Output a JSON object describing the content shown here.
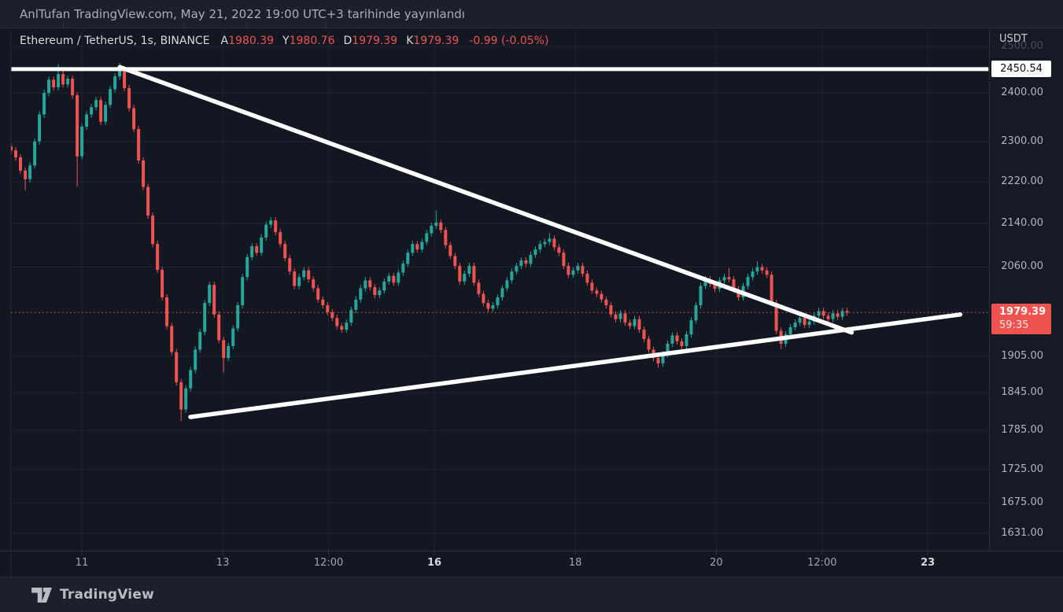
{
  "page": {
    "published_line": "AnlTufan TradingView.com, May 21, 2022 19:00 UTC+3 tarihinde yayınlandı"
  },
  "legend": {
    "symbol_title": "Ethereum / TetherUS, 1s, BINANCE",
    "fields": [
      {
        "label": "A",
        "value": "1980.39"
      },
      {
        "label": "Y",
        "value": "1980.76"
      },
      {
        "label": "D",
        "value": "1979.39"
      },
      {
        "label": "K",
        "value": "1979.39"
      }
    ],
    "change": "-0.99 (-0.05%)"
  },
  "price_axis": {
    "currency": "USDT",
    "ticks": [
      {
        "label": "2500.00",
        "price": 2500,
        "faint": true
      },
      {
        "label": "2400.00",
        "price": 2400
      },
      {
        "label": "2300.00",
        "price": 2300
      },
      {
        "label": "2220.00",
        "price": 2220
      },
      {
        "label": "2140.00",
        "price": 2140
      },
      {
        "label": "2060.00",
        "price": 2060
      },
      {
        "label": "1905.00",
        "price": 1905
      },
      {
        "label": "1845.00",
        "price": 1845
      },
      {
        "label": "1785.00",
        "price": 1785
      },
      {
        "label": "1725.00",
        "price": 1725
      },
      {
        "label": "1675.00",
        "price": 1675
      },
      {
        "label": "1631.00",
        "price": 1631
      }
    ],
    "line_badge": {
      "label": "2450.54",
      "price": 2450.54
    },
    "last_price_badge": {
      "label": "1979.39",
      "price": 1979.39,
      "countdown": "59:35"
    }
  },
  "time_axis": {
    "ticks": [
      {
        "label": "11",
        "day": 11
      },
      {
        "label": "13",
        "day": 13
      },
      {
        "label": "12:00",
        "day": 14.5
      },
      {
        "label": "16",
        "day": 16,
        "bold": true
      },
      {
        "label": "18",
        "day": 18
      },
      {
        "label": "20",
        "day": 20
      },
      {
        "label": "12:00",
        "day": 21.5
      },
      {
        "label": "23",
        "day": 23,
        "bold": true
      }
    ]
  },
  "footer": {
    "wordmark": "TradingView"
  },
  "chart_data": {
    "type": "candlestick",
    "symbol": "Ethereum / TetherUS",
    "exchange": "BINANCE",
    "interval": "1s",
    "quote_currency": "USDT",
    "scale": "log",
    "x_unit": "day of May 2022",
    "x_start_day": 9.996,
    "candle_day_step": 0.067,
    "first_open": 2290,
    "last_price": 1979.39,
    "up_color": "#26a69a",
    "down_color": "#ef5350",
    "default_wick_pct": 0.0028,
    "closes": [
      2282,
      2268,
      2242,
      2225,
      2252,
      2300,
      2355,
      2400,
      2428,
      2412,
      2440,
      2418,
      2430,
      2395,
      2270,
      2330,
      2355,
      2370,
      2385,
      2340,
      2375,
      2408,
      2435,
      2450,
      2410,
      2368,
      2325,
      2262,
      2210,
      2155,
      2102,
      2055,
      2006,
      1956,
      1912,
      1862,
      1818,
      1852,
      1882,
      1916,
      1946,
      1996,
      2028,
      1976,
      1932,
      1902,
      1922,
      1952,
      1992,
      2042,
      2078,
      2098,
      2086,
      2114,
      2138,
      2146,
      2124,
      2102,
      2076,
      2052,
      2026,
      2042,
      2054,
      2038,
      2022,
      2002,
      1992,
      1980,
      1970,
      1956,
      1950,
      1962,
      1984,
      2002,
      2022,
      2036,
      2024,
      2010,
      2018,
      2034,
      2044,
      2032,
      2050,
      2066,
      2086,
      2102,
      2092,
      2106,
      2122,
      2136,
      2142,
      2128,
      2100,
      2080,
      2062,
      2034,
      2048,
      2062,
      2032,
      2012,
      1996,
      1986,
      1992,
      2006,
      2022,
      2036,
      2052,
      2062,
      2072,
      2066,
      2082,
      2092,
      2102,
      2106,
      2112,
      2096,
      2086,
      2062,
      2046,
      2054,
      2062,
      2048,
      2032,
      2018,
      2012,
      2002,
      1992,
      1976,
      1968,
      1978,
      1962,
      1956,
      1968,
      1950,
      1934,
      1916,
      1902,
      1893,
      1908,
      1926,
      1940,
      1930,
      1922,
      1942,
      1966,
      1992,
      2026,
      2038,
      2030,
      2021,
      2036,
      2042,
      2038,
      2020,
      2006,
      2026,
      2042,
      2052,
      2060,
      2054,
      2046,
      1996,
      1948,
      1926,
      1942,
      1954,
      1962,
      1970,
      1958,
      1964,
      1974,
      1982,
      1974,
      1968,
      1978,
      1972,
      1982,
      1979.39
    ],
    "spikes": [
      {
        "i": 3,
        "low": 2203
      },
      {
        "i": 10,
        "high": 2462
      },
      {
        "i": 14,
        "low": 2210
      },
      {
        "i": 23,
        "high": 2464
      },
      {
        "i": 36,
        "low": 1800
      },
      {
        "i": 45,
        "low": 1878
      },
      {
        "i": 55,
        "high": 2152
      },
      {
        "i": 90,
        "high": 2165
      },
      {
        "i": 114,
        "high": 2122
      },
      {
        "i": 137,
        "low": 1886
      },
      {
        "i": 152,
        "high": 2058
      },
      {
        "i": 158,
        "high": 2070
      },
      {
        "i": 163,
        "low": 1917
      }
    ],
    "lines": {
      "horizontal_ray": {
        "price": 2450.54,
        "from_day": 10.0,
        "to_day": 23.86,
        "color": "#ffffff"
      },
      "descending_trendline": {
        "from": {
          "day": 11.54,
          "price": 2455
        },
        "to": {
          "day": 21.92,
          "price": 1945
        },
        "color": "#ffffff"
      },
      "ascending_trendline": {
        "from": {
          "day": 12.54,
          "price": 1806
        },
        "to": {
          "day": 23.46,
          "price": 1976
        },
        "color": "#ffffff"
      }
    },
    "grid": {
      "h_prices": [
        2500,
        2400,
        2300,
        2220,
        2140,
        2060,
        1905,
        1845,
        1785,
        1725,
        1675,
        1631
      ],
      "v_days": [
        11,
        13,
        14.5,
        16,
        18,
        20,
        21.5,
        23
      ]
    }
  }
}
